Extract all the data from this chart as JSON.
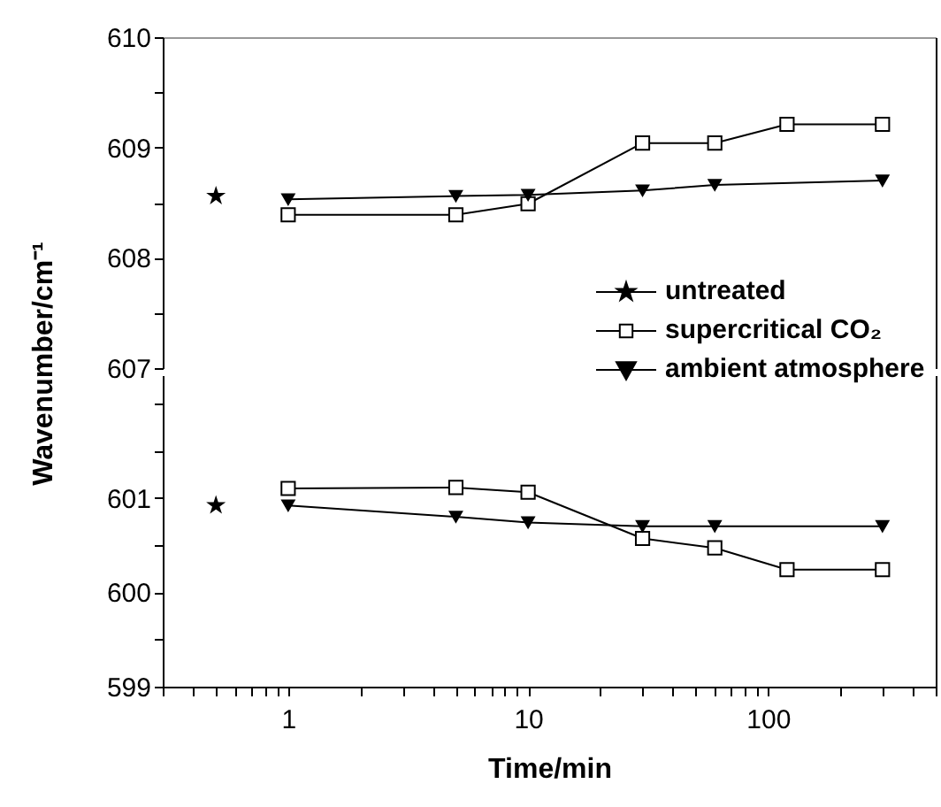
{
  "chart_data": [
    {
      "type": "line",
      "ylabel": "Wavenumber/cm⁻¹",
      "log": "x",
      "legend": "bottom right",
      "tick_labels": "y",
      "xlim": [
        0.3,
        500
      ],
      "ylim": [
        607,
        610
      ],
      "yticks": [
        607,
        {
          "value": 607.5,
          "label": null
        },
        608,
        {
          "value": 608.5,
          "label": null
        },
        609,
        {
          "value": 609.5,
          "label": null
        },
        610
      ],
      "series": [
        {
          "name": "untreated",
          "color": "#000000",
          "marker": "star",
          "x": [
            0.5
          ],
          "values": [
            608.56
          ]
        },
        {
          "name": "supercritical CO₂",
          "color": "#000000",
          "marker": "square",
          "x": [
            1,
            5,
            10,
            30,
            60,
            120,
            300
          ],
          "values": [
            608.39,
            608.39,
            608.49,
            609.04,
            609.04,
            609.21,
            609.21
          ]
        },
        {
          "name": "ambient atmosphere",
          "color": "#000000",
          "marker": "triangle",
          "x": [
            1,
            5,
            10,
            30,
            60,
            300
          ],
          "values": [
            608.53,
            608.56,
            608.57,
            608.61,
            608.66,
            608.7
          ]
        }
      ]
    },
    {
      "type": "line",
      "xlabel": "Time/min",
      "log": "x",
      "xlim": [
        0.3,
        500
      ],
      "xticks": [
        {
          "value": 0.3,
          "label": null
        },
        {
          "value": 0.4,
          "label": null
        },
        {
          "value": 0.5,
          "label": null
        },
        {
          "value": 0.6,
          "label": null
        },
        {
          "value": 0.7,
          "label": null
        },
        {
          "value": 0.8,
          "label": null
        },
        {
          "value": 0.9,
          "label": null
        },
        1,
        {
          "value": 2,
          "label": null
        },
        {
          "value": 3,
          "label": null
        },
        {
          "value": 4,
          "label": null
        },
        {
          "value": 5,
          "label": null
        },
        {
          "value": 6,
          "label": null
        },
        {
          "value": 7,
          "label": null
        },
        {
          "value": 8,
          "label": null
        },
        {
          "value": 9,
          "label": null
        },
        10,
        {
          "value": 20,
          "label": null
        },
        {
          "value": 30,
          "label": null
        },
        {
          "value": 40,
          "label": null
        },
        {
          "value": 50,
          "label": null
        },
        {
          "value": 60,
          "label": null
        },
        {
          "value": 70,
          "label": null
        },
        {
          "value": 80,
          "label": null
        },
        {
          "value": 90,
          "label": null
        },
        100,
        {
          "value": 200,
          "label": null
        },
        {
          "value": 300,
          "label": null
        },
        {
          "value": 400,
          "label": null
        },
        {
          "value": 500,
          "label": null
        }
      ],
      "ylim": [
        599,
        602.3
      ],
      "yticks": [
        599,
        {
          "value": 599.5,
          "label": null
        },
        600,
        {
          "value": 600.5,
          "label": null
        },
        601,
        {
          "value": 601.5,
          "label": null
        },
        {
          "value": 602,
          "label": null
        }
      ],
      "series": [
        {
          "color": "#000000",
          "marker": "star",
          "x": [
            0.5
          ],
          "values": [
            600.92
          ]
        },
        {
          "color": "#000000",
          "marker": "square",
          "x": [
            1,
            5,
            10,
            30,
            60,
            120,
            300
          ],
          "values": [
            601.1,
            601.11,
            601.06,
            600.57,
            600.47,
            600.24,
            600.24
          ]
        },
        {
          "color": "#000000",
          "marker": "triangle",
          "x": [
            1,
            5,
            10,
            30,
            60,
            300
          ],
          "values": [
            600.92,
            600.8,
            600.74,
            600.7,
            600.7,
            600.7
          ]
        }
      ]
    }
  ]
}
